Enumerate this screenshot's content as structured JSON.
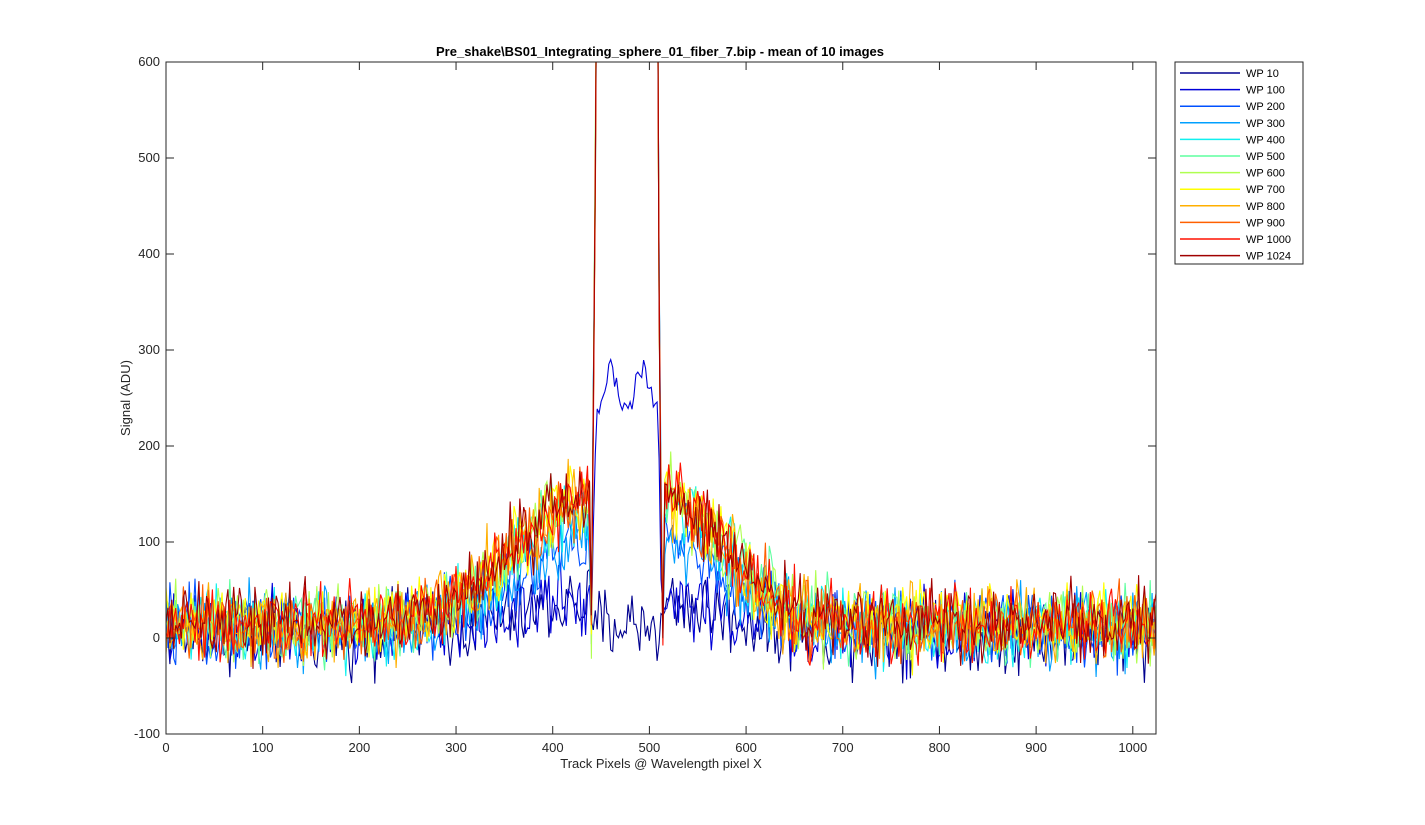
{
  "chart_data": {
    "type": "line",
    "title": "Pre_shake\\BS01_Integrating_sphere_01_fiber_7.bip - mean of 10 images",
    "xlabel": "Track Pixels @ Wavelength pixel X",
    "ylabel": "Signal (ADU)",
    "xlim": [
      0,
      1024
    ],
    "ylim": [
      -100,
      600
    ],
    "xticks": [
      0,
      100,
      200,
      300,
      400,
      500,
      600,
      700,
      800,
      900,
      1000
    ],
    "yticks": [
      -100,
      0,
      100,
      200,
      300,
      400,
      500,
      600
    ],
    "grid": false,
    "legend_position": "outside-top-right",
    "noise_amplitude_adu": 28,
    "series": [
      {
        "name": "WP 10",
        "color": "#00008F",
        "profile": "dark",
        "baseline": 5,
        "plateau": 0
      },
      {
        "name": "WP 100",
        "color": "#0000D9",
        "profile": "low",
        "baseline": 8,
        "plateau": 260
      },
      {
        "name": "WP 200",
        "color": "#0050FF",
        "profile": "mid",
        "baseline": 10,
        "plateau": 600
      },
      {
        "name": "WP 300",
        "color": "#00A0FF",
        "profile": "mid",
        "baseline": 10,
        "plateau": 600
      },
      {
        "name": "WP 400",
        "color": "#10F0EF",
        "profile": "bright",
        "baseline": 12,
        "plateau": 600
      },
      {
        "name": "WP 500",
        "color": "#5FFF9F",
        "profile": "bright",
        "baseline": 14,
        "plateau": 600
      },
      {
        "name": "WP 600",
        "color": "#AFFF50",
        "profile": "bright",
        "baseline": 15,
        "plateau": 600
      },
      {
        "name": "WP 700",
        "color": "#FFFF00",
        "profile": "bright",
        "baseline": 16,
        "plateau": 600
      },
      {
        "name": "WP 800",
        "color": "#FFAF00",
        "profile": "bright",
        "baseline": 15,
        "plateau": 600
      },
      {
        "name": "WP 900",
        "color": "#FF6000",
        "profile": "bright",
        "baseline": 16,
        "plateau": 600
      },
      {
        "name": "WP 1000",
        "color": "#FF1000",
        "profile": "bright",
        "baseline": 17,
        "plateau": 600
      },
      {
        "name": "WP 1024",
        "color": "#A00000",
        "profile": "bright",
        "baseline": 17,
        "plateau": 600
      }
    ]
  }
}
